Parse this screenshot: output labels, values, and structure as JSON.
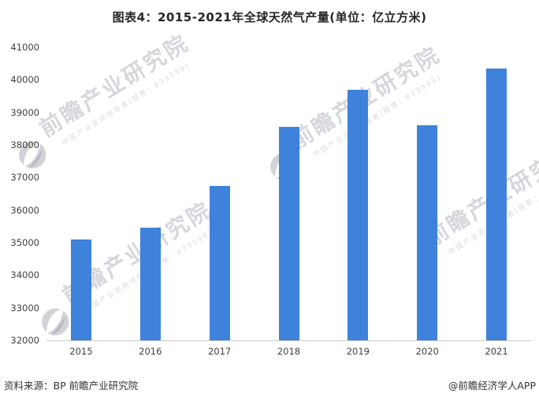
{
  "title": "图表4：2015-2021年全球天然气产量(单位：亿立方米)",
  "footer": {
    "source": "资料来源：BP 前瞻产业研究院",
    "brand": "@前瞻经济学人APP"
  },
  "watermark": {
    "main": "前瞻产业研究院",
    "sub": "中国产业咨询领导者(股票：839599)",
    "icon": "qianzhan-globe-icon"
  },
  "chart_data": {
    "type": "bar",
    "title": "图表4：2015-2021年全球天然气产量(单位：亿立方米)",
    "categories": [
      "2015",
      "2016",
      "2017",
      "2018",
      "2019",
      "2020",
      "2021"
    ],
    "values": [
      35100,
      35450,
      36750,
      38550,
      39700,
      38600,
      40350
    ],
    "xlabel": "",
    "ylabel": "",
    "ylim": [
      32000,
      41000
    ],
    "yticks": [
      32000,
      33000,
      34000,
      35000,
      36000,
      37000,
      38000,
      39000,
      40000,
      41000
    ],
    "grid": false,
    "legend": false,
    "bar_color": "#3e82dc",
    "axis_line_color": "#c9c9c9",
    "tick_label_color": "#404040"
  }
}
